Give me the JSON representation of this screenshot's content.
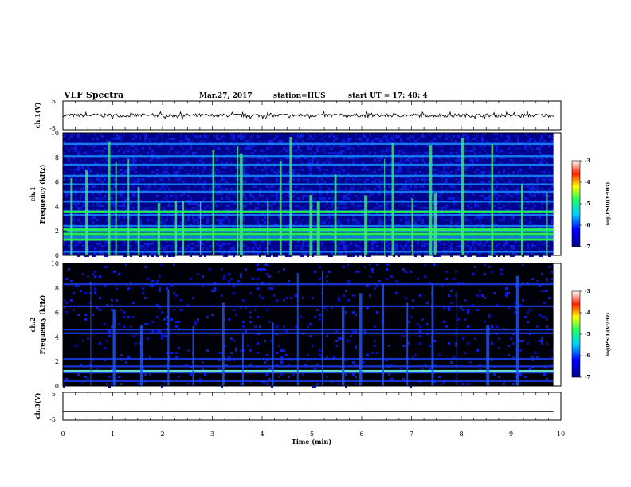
{
  "header": {
    "title": "VLF Spectra",
    "date": "Mar.27, 2017",
    "station": "station=HUS",
    "start": "start  UT  =   17: 40: 4"
  },
  "chart_data": [
    {
      "type": "line",
      "panel": "ch1-waveform",
      "ylabel": "ch.1(V)",
      "ylim": [
        -5,
        5
      ],
      "ticks": [
        "5",
        "-5"
      ],
      "x": [
        0,
        9.85
      ],
      "values": [
        0,
        0
      ],
      "note_range": [
        -0.6,
        0.6
      ]
    },
    {
      "type": "heatmap",
      "panel": "ch1-spectrogram",
      "ylabel": "ch.1",
      "ylabel2": "Frequency  (kHz)",
      "ylim": [
        0,
        10
      ],
      "yticks": [
        "0",
        "2",
        "4",
        "6",
        "8",
        "10"
      ],
      "xlim": [
        0,
        10
      ],
      "colorbar": {
        "label": "log(PSD)(V²/Hz)",
        "range": [
          -7,
          -3
        ],
        "ticks": [
          "-3",
          "-4",
          "-5",
          "-6",
          "-7"
        ]
      },
      "bands_khz": [
        0.3,
        1.5,
        2.0,
        2.4,
        3.3,
        3.6,
        4.4,
        5.2,
        5.8,
        6.5,
        7.4,
        8.1,
        9.1
      ],
      "strong_bands_khz": [
        1.3,
        1.75,
        2.1,
        3.55
      ],
      "burst_times_min": [
        0.15,
        0.45,
        0.9,
        1.05,
        1.3,
        1.5,
        1.9,
        2.25,
        2.4,
        2.75,
        3.0,
        3.5,
        3.55,
        4.1,
        4.35,
        4.55,
        4.95,
        5.1,
        5.45,
        6.05,
        6.45,
        6.6,
        7.0,
        7.35,
        7.45,
        8.0,
        8.6,
        9.2,
        9.7
      ]
    },
    {
      "type": "heatmap",
      "panel": "ch2-spectrogram",
      "ylabel": "ch.2",
      "ylabel2": "Frequency  (kHz)",
      "ylim": [
        0,
        10
      ],
      "yticks": [
        "0",
        "2",
        "4",
        "6",
        "8",
        "10"
      ],
      "xlim": [
        0,
        10
      ],
      "colorbar": {
        "label": "log(PSD)(V²/Hz)",
        "range": [
          -7,
          -3
        ],
        "ticks": [
          "-3",
          "-4",
          "-5",
          "-6",
          "-7"
        ]
      },
      "bands_khz": [
        0.4,
        1.1,
        1.6,
        2.2,
        4.3,
        4.6,
        6.5,
        8.3
      ],
      "strong_bands_khz": [
        1.2
      ],
      "burst_times_min": [
        0.55,
        1.0,
        1.55,
        2.1,
        2.6,
        3.2,
        3.6,
        4.2,
        4.7,
        5.2,
        5.6,
        5.95,
        6.4,
        6.9,
        7.4,
        7.9,
        8.5,
        9.1
      ]
    },
    {
      "type": "line",
      "panel": "ch3-waveform",
      "ylabel": "ch.3(V)",
      "ylim": [
        -5,
        5
      ],
      "ticks": [
        "5",
        "-5"
      ],
      "x": [
        0,
        9.85
      ],
      "values": [
        -2,
        -2
      ]
    }
  ],
  "xaxis": {
    "label": "Time  (min)",
    "range": [
      0,
      10
    ],
    "ticks": [
      "0",
      "1",
      "2",
      "3",
      "4",
      "5",
      "6",
      "7",
      "8",
      "9",
      "10"
    ]
  }
}
